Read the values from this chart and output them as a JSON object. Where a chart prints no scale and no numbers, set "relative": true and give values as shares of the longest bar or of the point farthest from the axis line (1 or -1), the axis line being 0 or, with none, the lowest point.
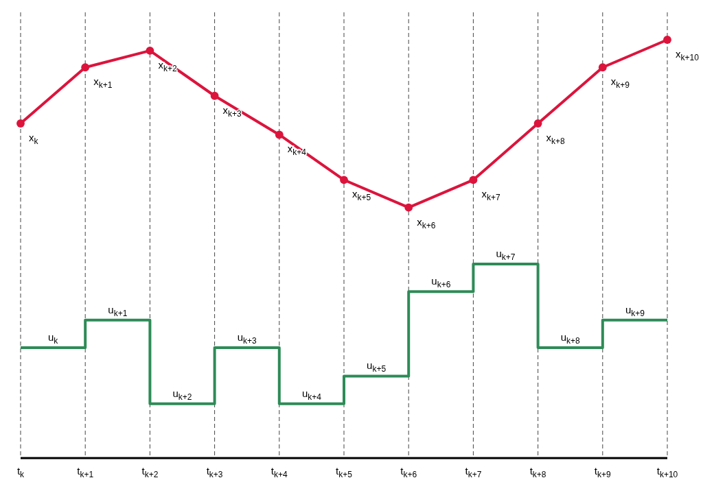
{
  "chart_data": {
    "type": "line",
    "relative": true,
    "categories": [
      "t$_{k}$",
      "t$_{k+1}$",
      "t$_{k+2}$",
      "t$_{k+3}$",
      "t$_{k+4}$",
      "t$_{k+5}$",
      "t$_{k+6}$",
      "t$_{k+7}$",
      "t$_{k+8}$",
      "t$_{k+9}$",
      "t$_{k+10}$"
    ],
    "series": [
      {
        "type": "line",
        "color": "#dc143c",
        "marker": "circle",
        "line_style": "solid",
        "values": [
          0.8,
          0.934,
          0.974,
          0.866,
          0.773,
          0.665,
          0.599,
          0.665,
          0.8,
          0.934,
          1
        ]
      },
      {
        "type": "step",
        "color": "#2e8b57",
        "marker": "none",
        "line_style": "solid",
        "values": [
          0.264,
          0.33,
          0.13,
          0.264,
          0.13,
          0.196,
          0.398,
          0.464,
          0.264,
          0.33,
          0.33
        ]
      }
    ],
    "grid": "x",
    "annotations": [
      {
        "text": "x$_{k}$",
        "x": "t$_{k}$",
        "y": 0.8
      },
      {
        "text": "x$_{k+1}$",
        "x": "t$_{k+1}$",
        "y": 0.934
      },
      {
        "text": "x$_{k+2}$",
        "x": "t$_{k+2}$",
        "y": 0.974
      },
      {
        "text": "x$_{k+3}$",
        "x": "t$_{k+3}$",
        "y": 0.866
      },
      {
        "text": "x$_{k+4}$",
        "x": "t$_{k+4}$",
        "y": 0.773
      },
      {
        "text": "x$_{k+5}$",
        "x": "t$_{k+5}$",
        "y": 0.665
      },
      {
        "text": "x$_{k+6}$",
        "x": "t$_{k+6}$",
        "y": 0.599
      },
      {
        "text": "x$_{k+7}$",
        "x": "t$_{k+7}$",
        "y": 0.665
      },
      {
        "text": "x$_{k+8}$",
        "x": "t$_{k+8}$",
        "y": 0.8
      },
      {
        "text": "x$_{k+9}$",
        "x": "t$_{k+9}$",
        "y": 0.934
      },
      {
        "text": "x$_{k+10}$",
        "x": "t$_{k+10}$",
        "y": 1
      },
      {
        "text": "u$_{k}$",
        "x": "t$_{k}$",
        "y": 0.264
      },
      {
        "text": "u$_{k+1}$",
        "x": "t$_{k+1}$",
        "y": 0.33
      },
      {
        "text": "u$_{k+2}$",
        "x": "t$_{k+2}$",
        "y": 0.13
      },
      {
        "text": "u$_{k+3}$",
        "x": "t$_{k+3}$",
        "y": 0.264
      },
      {
        "text": "u$_{k+4}$",
        "x": "t$_{k+4}$",
        "y": 0.13
      },
      {
        "text": "u$_{k+5}$",
        "x": "t$_{k+5}$",
        "y": 0.196
      },
      {
        "text": "u$_{k+6}$",
        "x": "t$_{k+6}$",
        "y": 0.398
      },
      {
        "text": "u$_{k+7}$",
        "x": "t$_{k+7}$",
        "y": 0.464
      },
      {
        "text": "u$_{k+8}$",
        "x": "t$_{k+8}$",
        "y": 0.264
      },
      {
        "text": "u$_{k+9}$",
        "x": "t$_{k+9}$",
        "y": 0.33
      }
    ]
  }
}
